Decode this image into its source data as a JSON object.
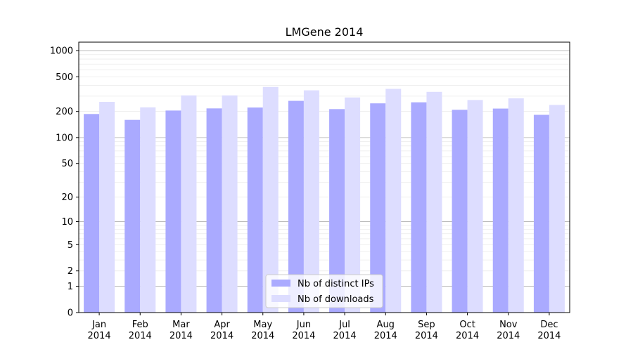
{
  "chart_data": {
    "type": "bar",
    "title": "LMGene 2014",
    "xlabel": "",
    "ylabel": "",
    "yscale": "log(1+y)",
    "ylim": [
      0,
      1250
    ],
    "yticks": [
      0,
      1,
      2,
      5,
      10,
      20,
      50,
      100,
      200,
      500,
      1000
    ],
    "ytick_labels": [
      "0",
      "1",
      "2",
      "5",
      "10",
      "20",
      "50",
      "100",
      "200",
      "500",
      "1000"
    ],
    "grid": true,
    "legend_position": "bottom-center",
    "categories": [
      {
        "month": "Jan",
        "year": "2014"
      },
      {
        "month": "Feb",
        "year": "2014"
      },
      {
        "month": "Mar",
        "year": "2014"
      },
      {
        "month": "Apr",
        "year": "2014"
      },
      {
        "month": "May",
        "year": "2014"
      },
      {
        "month": "Jun",
        "year": "2014"
      },
      {
        "month": "Jul",
        "year": "2014"
      },
      {
        "month": "Aug",
        "year": "2014"
      },
      {
        "month": "Sep",
        "year": "2014"
      },
      {
        "month": "Oct",
        "year": "2014"
      },
      {
        "month": "Nov",
        "year": "2014"
      },
      {
        "month": "Dec",
        "year": "2014"
      }
    ],
    "series": [
      {
        "name": "Nb of distinct IPs",
        "color": "#aaaaff",
        "values": [
          187,
          160,
          205,
          217,
          222,
          265,
          213,
          248,
          255,
          209,
          216,
          183
        ]
      },
      {
        "name": "Nb of downloads",
        "color": "#ddddff",
        "values": [
          258,
          223,
          306,
          306,
          383,
          350,
          290,
          364,
          336,
          271,
          283,
          238
        ]
      }
    ]
  }
}
